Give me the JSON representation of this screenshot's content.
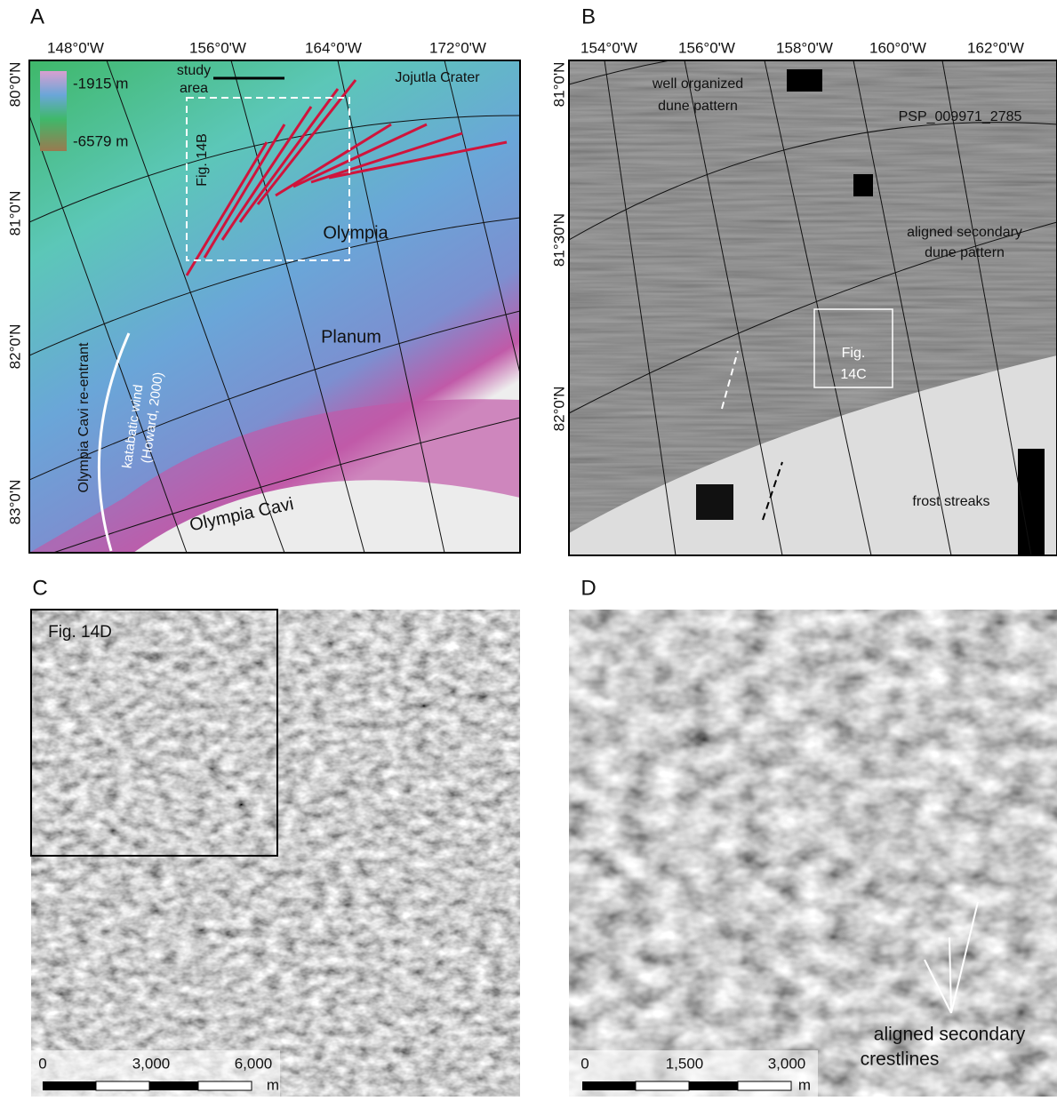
{
  "panels": [
    {
      "label": "A",
      "lon_labels": [
        "148°0'W",
        "156°0'W",
        "164°0'W",
        "172°0'W"
      ],
      "lat_labels": [
        "80°0'N",
        "81°0'N",
        "82°0'N",
        "83°0'N"
      ],
      "legend": {
        "max": "-1915 m",
        "min": "-6579 m"
      },
      "annotations": [
        [
          "study",
          "area"
        ],
        [
          "Jojutla Crater"
        ],
        [
          "Fig. 14B"
        ],
        [
          "Olympia"
        ],
        [
          "Planum"
        ],
        [
          "Olympia  Cavi"
        ],
        [
          "Olympia Cavi re-entrant"
        ],
        [
          "katabatic wind"
        ],
        [
          "(Howard, 2000)"
        ]
      ]
    },
    {
      "label": "B",
      "lon_labels": [
        "154°0'W",
        "156°0'W",
        "158°0'W",
        "160°0'W",
        "162°0'W"
      ],
      "lat_labels": [
        "81°0'N",
        "81°30'N",
        "82°0'N"
      ],
      "annotations": [
        [
          "well organized",
          "dune pattern"
        ],
        [
          "PSP_009971_2785"
        ],
        [
          "aligned secondary",
          "dune pattern"
        ],
        [
          "Fig.",
          "14C"
        ],
        [
          "frost streaks"
        ]
      ]
    },
    {
      "label": "C",
      "annotations": [
        [
          "Fig. 14D"
        ]
      ],
      "scale": {
        "labels": [
          "0",
          "3,000",
          "6,000"
        ],
        "unit": "m"
      }
    },
    {
      "label": "D",
      "annotations": [
        [
          "aligned secondary",
          "crestlines"
        ]
      ],
      "scale": {
        "labels": [
          "0",
          "1,500",
          "3,000"
        ],
        "unit": "m"
      }
    }
  ]
}
